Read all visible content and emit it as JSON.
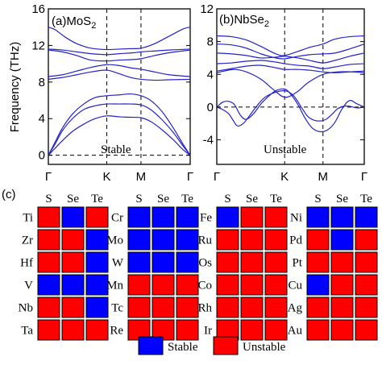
{
  "colors": {
    "stable": "#0000ff",
    "unstable": "#ff0000",
    "band": "#2323c8",
    "axis": "#000000"
  },
  "chart_data": [
    {
      "type": "line",
      "panel_label": "(a)MoS",
      "panel_label_sub": "2",
      "ylabel": "Frequency (THz)",
      "ylim": [
        -1,
        16
      ],
      "yticks": [
        "0",
        "4",
        "8",
        "12",
        "16"
      ],
      "xticks": [
        "Γ",
        "K",
        "M",
        "Γ"
      ],
      "xtick_positions": [
        0,
        0.412,
        0.653,
        1
      ],
      "annotation": "Stable",
      "series": [
        {
          "x": [
            0,
            0.05,
            0.12,
            0.2,
            0.3,
            0.412,
            0.5,
            0.58,
            0.653,
            0.75,
            0.85,
            0.95,
            1
          ],
          "y": [
            14.0,
            13.7,
            12.9,
            12.2,
            11.7,
            11.55,
            11.6,
            11.65,
            11.7,
            12.2,
            13.0,
            13.8,
            14.0
          ]
        },
        {
          "x": [
            0,
            0.1,
            0.2,
            0.3,
            0.412,
            0.5,
            0.6,
            0.653,
            0.75,
            0.85,
            1
          ],
          "y": [
            11.6,
            11.5,
            11.3,
            11.1,
            11.0,
            11.1,
            11.2,
            11.3,
            11.4,
            11.5,
            11.6
          ]
        },
        {
          "x": [
            0,
            0.1,
            0.2,
            0.3,
            0.412,
            0.5,
            0.58,
            0.653,
            0.75,
            0.85,
            1
          ],
          "y": [
            11.5,
            11.3,
            10.9,
            10.4,
            10.3,
            10.4,
            10.45,
            10.55,
            10.9,
            11.2,
            11.5
          ]
        },
        {
          "x": [
            0,
            0.1,
            0.2,
            0.3,
            0.412,
            0.5,
            0.58,
            0.653,
            0.75,
            0.85,
            1
          ],
          "y": [
            8.6,
            8.8,
            9.2,
            9.6,
            9.9,
            9.8,
            9.55,
            9.4,
            9.1,
            8.8,
            8.6
          ]
        },
        {
          "x": [
            0,
            0.1,
            0.2,
            0.3,
            0.412,
            0.5,
            0.58,
            0.653,
            0.75,
            0.85,
            1
          ],
          "y": [
            8.3,
            8.5,
            8.8,
            9.1,
            9.3,
            8.9,
            8.5,
            8.3,
            8.2,
            8.25,
            8.3
          ]
        },
        {
          "x": [
            0,
            0.05,
            0.1,
            0.17,
            0.25,
            0.33,
            0.412,
            0.5,
            0.58,
            0.653,
            0.72,
            0.8,
            0.88,
            0.95,
            1
          ],
          "y": [
            0,
            1.5,
            3.0,
            4.5,
            5.6,
            6.3,
            6.5,
            6.6,
            6.7,
            6.5,
            6.0,
            4.8,
            3.0,
            1.2,
            0
          ]
        },
        {
          "x": [
            0,
            0.05,
            0.1,
            0.17,
            0.25,
            0.33,
            0.412,
            0.5,
            0.58,
            0.653,
            0.72,
            0.8,
            0.88,
            0.95,
            1
          ],
          "y": [
            0,
            1.3,
            2.7,
            4.0,
            5.0,
            5.4,
            5.6,
            5.6,
            5.6,
            5.5,
            5.0,
            3.9,
            2.5,
            1.0,
            0
          ]
        },
        {
          "x": [
            0,
            0.05,
            0.1,
            0.17,
            0.25,
            0.33,
            0.412,
            0.5,
            0.58,
            0.653,
            0.72,
            0.8,
            0.88,
            0.95,
            1
          ],
          "y": [
            0,
            0.8,
            1.6,
            2.6,
            3.4,
            4.0,
            4.3,
            4.2,
            4.15,
            4.1,
            3.7,
            2.8,
            1.7,
            0.6,
            0
          ]
        }
      ]
    },
    {
      "type": "line",
      "panel_label": "(b)NbSe",
      "panel_label_sub": "2",
      "ylabel": "",
      "ylim": [
        -7,
        12
      ],
      "yticks": [
        "-4",
        "0",
        "4",
        "8",
        "12"
      ],
      "ytick_values": [
        -4,
        0,
        4,
        8,
        12
      ],
      "xticks": [
        "Γ",
        "K",
        "M",
        "Γ"
      ],
      "xtick_positions": [
        0,
        0.46,
        0.72,
        1
      ],
      "annotation": "Unstable",
      "series": [
        {
          "x": [
            0,
            0.1,
            0.2,
            0.3,
            0.4,
            0.46,
            0.55,
            0.63,
            0.72,
            0.8,
            0.9,
            1
          ],
          "y": [
            8.7,
            8.6,
            8.2,
            7.4,
            6.5,
            6.3,
            6.8,
            7.3,
            7.7,
            8.3,
            8.6,
            8.7
          ]
        },
        {
          "x": [
            0,
            0.1,
            0.2,
            0.3,
            0.4,
            0.46,
            0.55,
            0.63,
            0.72,
            0.8,
            0.9,
            1
          ],
          "y": [
            7.7,
            7.6,
            7.2,
            6.5,
            6.0,
            5.9,
            6.2,
            6.4,
            6.5,
            6.6,
            7.1,
            7.7
          ]
        },
        {
          "x": [
            0,
            0.1,
            0.2,
            0.3,
            0.4,
            0.46,
            0.55,
            0.63,
            0.72,
            0.8,
            0.9,
            1
          ],
          "y": [
            6.6,
            6.5,
            6.3,
            6.0,
            6.1,
            6.2,
            6.0,
            5.7,
            5.4,
            5.7,
            6.2,
            6.6
          ]
        },
        {
          "x": [
            0,
            0.1,
            0.2,
            0.3,
            0.4,
            0.46,
            0.55,
            0.63,
            0.72,
            0.8,
            0.9,
            1
          ],
          "y": [
            5.3,
            5.4,
            5.6,
            5.7,
            5.5,
            5.3,
            5.1,
            5.0,
            4.7,
            4.9,
            5.2,
            5.3
          ]
        },
        {
          "x": [
            0,
            0.1,
            0.2,
            0.3,
            0.4,
            0.46,
            0.55,
            0.63,
            0.72,
            0.8,
            0.9,
            1
          ],
          "y": [
            4.4,
            4.7,
            5.0,
            5.1,
            4.8,
            4.6,
            4.6,
            4.5,
            4.3,
            4.2,
            4.3,
            4.4
          ]
        },
        {
          "x": [
            0,
            0.05,
            0.12,
            0.2,
            0.3,
            0.38,
            0.46,
            0.54,
            0.62,
            0.72,
            0.82,
            0.92,
            1
          ],
          "y": [
            4.2,
            4.4,
            4.6,
            4.3,
            3.4,
            2.2,
            1.2,
            1.8,
            3.0,
            4.0,
            4.3,
            4.3,
            4.2
          ]
        },
        {
          "x": [
            0,
            0.04,
            0.08,
            0.12,
            0.16,
            0.2,
            0.25,
            0.3,
            0.35,
            0.4,
            0.46,
            0.5,
            0.55,
            0.6,
            0.65,
            0.7,
            0.75,
            0.8,
            0.85,
            0.9,
            0.95,
            1
          ],
          "y": [
            0,
            0.6,
            0.7,
            0.3,
            -1.0,
            -1.5,
            -0.8,
            0.4,
            1.3,
            2.0,
            2.2,
            1.6,
            0.3,
            -1.4,
            -2.6,
            -3.0,
            -2.8,
            -1.9,
            -0.2,
            0.8,
            0.4,
            0
          ]
        },
        {
          "x": [
            0,
            0.04,
            0.08,
            0.11,
            0.14,
            0.18,
            0.22,
            0.27,
            0.32,
            0.38,
            0.46,
            0.52,
            0.58,
            0.62,
            0.66,
            0.7,
            0.74,
            0.78,
            0.82,
            0.86,
            0.9,
            0.95,
            1
          ],
          "y": [
            0,
            -0.3,
            -0.8,
            -1.6,
            -2.3,
            -2.0,
            -1.1,
            0.1,
            1.1,
            1.7,
            2.0,
            1.4,
            -0.2,
            -1.2,
            -1.6,
            -1.7,
            -1.5,
            -0.9,
            -0.2,
            0.1,
            0.1,
            -0.1,
            0
          ]
        }
      ]
    },
    {
      "type": "heatmap",
      "panel_label": "(c)",
      "columns": [
        "S",
        "Se",
        "Te"
      ],
      "legend": {
        "stable": "Stable",
        "unstable": "Unstable"
      },
      "groups": [
        {
          "rows": [
            {
              "element": "Ti",
              "values": [
                "unstable",
                "stable",
                "unstable"
              ]
            },
            {
              "element": "Zr",
              "values": [
                "unstable",
                "unstable",
                "stable"
              ]
            },
            {
              "element": "Hf",
              "values": [
                "unstable",
                "unstable",
                "stable"
              ]
            },
            {
              "element": "V",
              "values": [
                "stable",
                "stable",
                "stable"
              ]
            },
            {
              "element": "Nb",
              "values": [
                "unstable",
                "unstable",
                "stable"
              ]
            },
            {
              "element": "Ta",
              "values": [
                "unstable",
                "unstable",
                "unstable"
              ]
            }
          ]
        },
        {
          "rows": [
            {
              "element": "Cr",
              "values": [
                "stable",
                "stable",
                "stable"
              ]
            },
            {
              "element": "Mo",
              "values": [
                "stable",
                "stable",
                "stable"
              ]
            },
            {
              "element": "W",
              "values": [
                "stable",
                "stable",
                "stable"
              ]
            },
            {
              "element": "Mn",
              "values": [
                "unstable",
                "unstable",
                "unstable"
              ]
            },
            {
              "element": "Tc",
              "values": [
                "unstable",
                "unstable",
                "unstable"
              ]
            },
            {
              "element": "Re",
              "values": [
                "unstable",
                "unstable",
                "unstable"
              ]
            }
          ]
        },
        {
          "rows": [
            {
              "element": "Fe",
              "values": [
                "stable",
                "unstable",
                "unstable"
              ]
            },
            {
              "element": "Ru",
              "values": [
                "unstable",
                "unstable",
                "unstable"
              ]
            },
            {
              "element": "Os",
              "values": [
                "unstable",
                "unstable",
                "unstable"
              ]
            },
            {
              "element": "Co",
              "values": [
                "unstable",
                "unstable",
                "unstable"
              ]
            },
            {
              "element": "Rh",
              "values": [
                "unstable",
                "unstable",
                "unstable"
              ]
            },
            {
              "element": "Ir",
              "values": [
                "unstable",
                "unstable",
                "unstable"
              ]
            }
          ]
        },
        {
          "rows": [
            {
              "element": "Ni",
              "values": [
                "stable",
                "stable",
                "stable"
              ]
            },
            {
              "element": "Pd",
              "values": [
                "unstable",
                "stable",
                "unstable"
              ]
            },
            {
              "element": "Pt",
              "values": [
                "unstable",
                "unstable",
                "unstable"
              ]
            },
            {
              "element": "Cu",
              "values": [
                "stable",
                "unstable",
                "unstable"
              ]
            },
            {
              "element": "Ag",
              "values": [
                "unstable",
                "unstable",
                "unstable"
              ]
            },
            {
              "element": "Au",
              "values": [
                "unstable",
                "unstable",
                "unstable"
              ]
            }
          ]
        }
      ]
    }
  ]
}
